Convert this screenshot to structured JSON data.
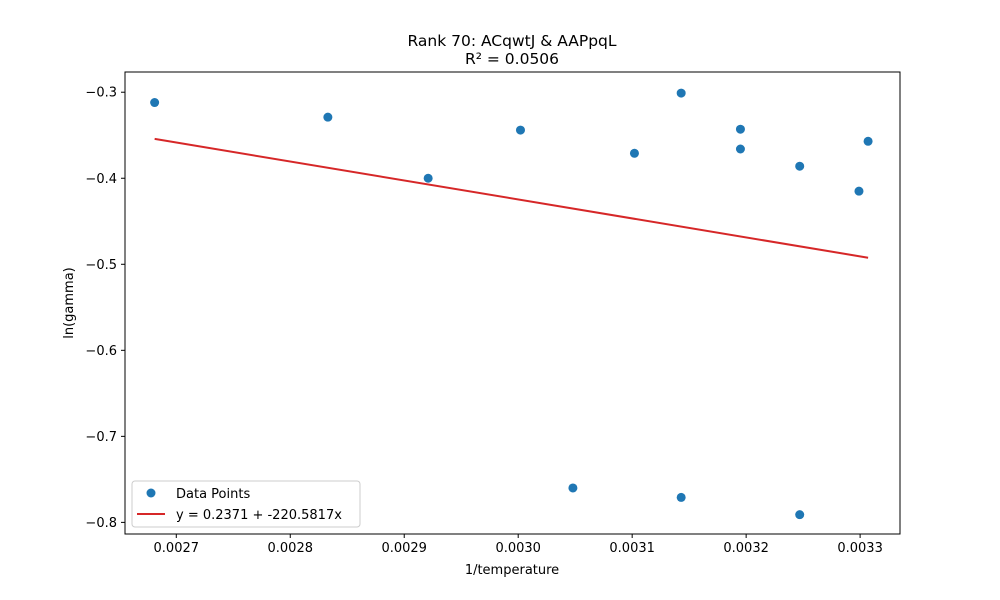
{
  "chart_data": {
    "type": "scatter",
    "title": "Rank 70: ACqwtJ & AAPpqL",
    "subtitle": "R² = 0.0506",
    "xlabel": "1/temperature",
    "ylabel": "ln(gamma)",
    "xlim": [
      0.002655,
      0.003335
    ],
    "ylim": [
      -0.8135,
      -0.2765
    ],
    "xticks": [
      0.0027,
      0.0028,
      0.0029,
      0.003,
      0.0031,
      0.0032,
      0.0033
    ],
    "xtick_labels": [
      "0.0027",
      "0.0028",
      "0.0029",
      "0.0030",
      "0.0031",
      "0.0032",
      "0.0033"
    ],
    "yticks": [
      -0.3,
      -0.4,
      -0.5,
      -0.6,
      -0.7,
      -0.8
    ],
    "ytick_labels": [
      "−0.3",
      "−0.4",
      "−0.5",
      "−0.6",
      "−0.7",
      "−0.8"
    ],
    "grid": false,
    "legend_position": "lower-left",
    "series": [
      {
        "name": "Data Points",
        "kind": "scatter",
        "color": "#1f77b4",
        "x": [
          0.002681,
          0.002833,
          0.002921,
          0.003002,
          0.003048,
          0.003102,
          0.003143,
          0.003143,
          0.003195,
          0.003195,
          0.003247,
          0.003247,
          0.003299,
          0.003307
        ],
        "y": [
          -0.312,
          -0.329,
          -0.4,
          -0.344,
          -0.76,
          -0.371,
          -0.301,
          -0.771,
          -0.343,
          -0.366,
          -0.386,
          -0.791,
          -0.415,
          -0.357
        ]
      },
      {
        "name": "y = 0.2371 + -220.5817x",
        "kind": "line",
        "color": "#d62728",
        "intercept": 0.2371,
        "slope": -220.5817,
        "x_range": [
          0.002681,
          0.003307
        ]
      }
    ]
  }
}
